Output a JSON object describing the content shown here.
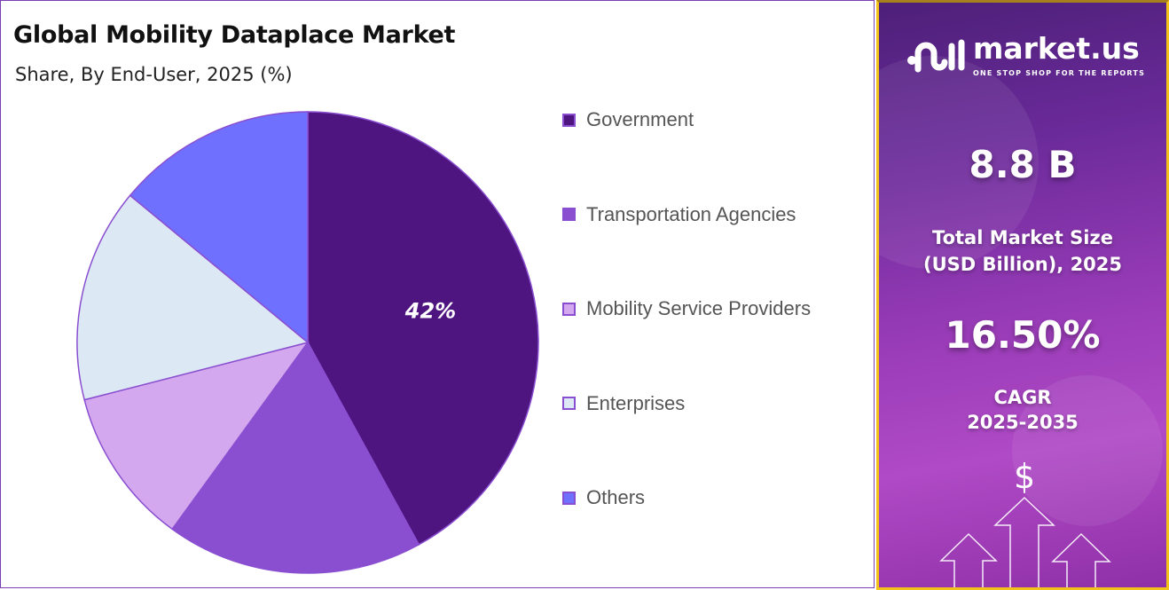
{
  "header": {
    "title": "Global Mobility Dataplace Market",
    "subtitle": "Share, By End-User, 2025 (%)"
  },
  "chart_data": {
    "type": "pie",
    "title": "Global Mobility Dataplace Market",
    "subtitle": "Share, By End-User, 2025 (%)",
    "categories": [
      "Government",
      "Transportation Agencies",
      "Mobility Service Providers",
      "Enterprises",
      "Others"
    ],
    "values": [
      42,
      18,
      11,
      15,
      14
    ],
    "colors": [
      "#4e1580",
      "#8a4fd0",
      "#d4a8ee",
      "#dde8f5",
      "#7070ff"
    ],
    "data_labels": [
      "42%",
      "",
      "",
      "",
      ""
    ],
    "legend_position": "right",
    "start": "top, clockwise"
  },
  "panel": {
    "brand": "market.us",
    "tagline": "ONE STOP SHOP FOR THE REPORTS",
    "market_size": "8.8 B",
    "market_size_label_1": "Total Market Size",
    "market_size_label_2": "(USD Billion), 2025",
    "cagr": "16.50%",
    "cagr_label_1": "CAGR",
    "cagr_label_2": "2025-2035",
    "icons": [
      "dollar-icon",
      "arrow-up-icon"
    ]
  }
}
